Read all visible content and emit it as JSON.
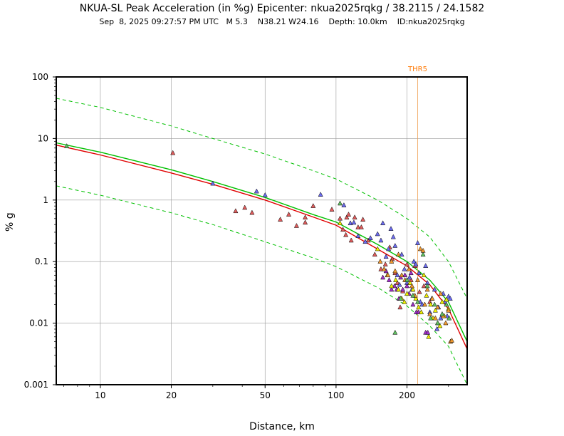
{
  "chart_data": {
    "type": "scatter",
    "title": "NKUA-SL Peak Acceleration (in %g) Epicenter: nkua2025rqkg / 38.2115 / 24.1582",
    "subtitle": "Sep  8, 2025 09:27:57 PM UTC   M 5.3    N38.21 W24.16    Depth: 10.0km    ID:nkua2025rqkg",
    "xlabel": "Distance, km",
    "ylabel": "% g",
    "x_scale": "log",
    "y_scale": "log",
    "xlim": [
      6.5,
      360
    ],
    "ylim": [
      0.001,
      100
    ],
    "x_ticks": [
      10,
      20,
      50,
      100,
      200
    ],
    "x_tick_labels": [
      "10",
      "20",
      "50",
      "100",
      "200"
    ],
    "y_ticks": [
      0.001,
      0.01,
      0.1,
      1,
      10,
      100
    ],
    "y_tick_labels": [
      "0.001",
      "0.01",
      "0.1",
      "1",
      "10",
      "100"
    ],
    "grid": true,
    "threshold": {
      "label": "THR5",
      "x": 222
    },
    "colors": {
      "red_curve": "#e00000",
      "green_curve": "#00c000",
      "threshold_line": "#f0a050",
      "threshold_label": "#ff7700",
      "grid": "#9a9a9a"
    },
    "curves": [
      {
        "name": "gmpe-median",
        "color": "green",
        "dash": false,
        "points": [
          [
            6.5,
            8.5
          ],
          [
            10,
            6.0
          ],
          [
            20,
            3.1
          ],
          [
            30,
            2.0
          ],
          [
            50,
            1.1
          ],
          [
            80,
            0.58
          ],
          [
            100,
            0.44
          ],
          [
            150,
            0.19
          ],
          [
            200,
            0.1
          ],
          [
            250,
            0.05
          ],
          [
            300,
            0.022
          ],
          [
            360,
            0.005
          ]
        ]
      },
      {
        "name": "gmpe-upper",
        "color": "green",
        "dash": true,
        "points": [
          [
            6.5,
            45
          ],
          [
            10,
            32
          ],
          [
            20,
            16
          ],
          [
            30,
            10
          ],
          [
            50,
            5.6
          ],
          [
            80,
            3.0
          ],
          [
            100,
            2.2
          ],
          [
            150,
            1.0
          ],
          [
            200,
            0.5
          ],
          [
            250,
            0.25
          ],
          [
            300,
            0.1
          ],
          [
            360,
            0.025
          ]
        ]
      },
      {
        "name": "gmpe-lower",
        "color": "green",
        "dash": true,
        "points": [
          [
            6.5,
            1.7
          ],
          [
            10,
            1.2
          ],
          [
            20,
            0.62
          ],
          [
            30,
            0.4
          ],
          [
            50,
            0.21
          ],
          [
            80,
            0.115
          ],
          [
            100,
            0.083
          ],
          [
            150,
            0.038
          ],
          [
            200,
            0.019
          ],
          [
            250,
            0.009
          ],
          [
            300,
            0.0042
          ],
          [
            360,
            0.001
          ]
        ]
      },
      {
        "name": "fitted",
        "color": "red",
        "dash": false,
        "points": [
          [
            6.5,
            7.8
          ],
          [
            10,
            5.4
          ],
          [
            20,
            2.75
          ],
          [
            30,
            1.8
          ],
          [
            50,
            1.0
          ],
          [
            80,
            0.53
          ],
          [
            100,
            0.39
          ],
          [
            150,
            0.16
          ],
          [
            200,
            0.085
          ],
          [
            250,
            0.042
          ],
          [
            300,
            0.017
          ],
          [
            360,
            0.0038
          ]
        ]
      }
    ],
    "series": [
      {
        "name": "red",
        "color": "#e05c5c",
        "points": [
          [
            20.3,
            5.8
          ],
          [
            37.5,
            0.66
          ],
          [
            41,
            0.75
          ],
          [
            44,
            0.62
          ],
          [
            58,
            0.48
          ],
          [
            63,
            0.58
          ],
          [
            68,
            0.38
          ],
          [
            74,
            0.43
          ],
          [
            74,
            0.52
          ],
          [
            80,
            0.8
          ],
          [
            96,
            0.7
          ],
          [
            104,
            0.5
          ],
          [
            107,
            0.33
          ],
          [
            110,
            0.27
          ],
          [
            111,
            0.52
          ],
          [
            113,
            0.58
          ],
          [
            116,
            0.22
          ],
          [
            120,
            0.52
          ],
          [
            124,
            0.36
          ],
          [
            128,
            0.36
          ],
          [
            130,
            0.48
          ],
          [
            137,
            0.22
          ],
          [
            146,
            0.13
          ],
          [
            155,
            0.075
          ],
          [
            162,
            0.09
          ],
          [
            169,
            0.17
          ],
          [
            173,
            0.11
          ],
          [
            178,
            0.065
          ],
          [
            182,
            0.045
          ],
          [
            187,
            0.018
          ],
          [
            192,
            0.033
          ],
          [
            200,
            0.09
          ],
          [
            208,
            0.05
          ],
          [
            216,
            0.085
          ],
          [
            226,
            0.032
          ],
          [
            236,
            0.04
          ],
          [
            250,
            0.022
          ]
        ]
      },
      {
        "name": "blue",
        "color": "#6c6cf0",
        "points": [
          [
            30,
            1.85
          ],
          [
            46,
            1.38
          ],
          [
            50,
            1.2
          ],
          [
            86,
            1.22
          ],
          [
            108,
            0.82
          ],
          [
            115,
            0.42
          ],
          [
            119,
            0.43
          ],
          [
            124,
            0.26
          ],
          [
            133,
            0.21
          ],
          [
            140,
            0.24
          ],
          [
            150,
            0.28
          ],
          [
            155,
            0.22
          ],
          [
            158,
            0.42
          ],
          [
            163,
            0.12
          ],
          [
            167,
            0.16
          ],
          [
            171,
            0.34
          ],
          [
            175,
            0.25
          ],
          [
            178,
            0.18
          ],
          [
            182,
            0.06
          ],
          [
            186,
            0.042
          ],
          [
            190,
            0.13
          ],
          [
            195,
            0.075
          ],
          [
            200,
            0.045
          ],
          [
            205,
            0.055
          ],
          [
            210,
            0.035
          ],
          [
            214,
            0.1
          ],
          [
            218,
            0.09
          ],
          [
            222,
            0.2
          ],
          [
            225,
            0.065
          ],
          [
            228,
            0.022
          ],
          [
            232,
            0.02
          ],
          [
            240,
            0.085
          ],
          [
            244,
            0.045
          ],
          [
            250,
            0.015
          ],
          [
            255,
            0.025
          ],
          [
            262,
            0.035
          ],
          [
            268,
            0.008
          ],
          [
            272,
            0.018
          ],
          [
            278,
            0.012
          ],
          [
            285,
            0.03
          ],
          [
            290,
            0.022
          ],
          [
            296,
            0.013
          ],
          [
            300,
            0.027
          ],
          [
            305,
            0.025
          ]
        ]
      },
      {
        "name": "purple",
        "color": "#a030c8",
        "points": [
          [
            158,
            0.055
          ],
          [
            163,
            0.07
          ],
          [
            168,
            0.05
          ],
          [
            172,
            0.035
          ],
          [
            177,
            0.04
          ],
          [
            181,
            0.035
          ],
          [
            185,
            0.025
          ],
          [
            188,
            0.055
          ],
          [
            192,
            0.035
          ],
          [
            196,
            0.06
          ],
          [
            200,
            0.04
          ],
          [
            204,
            0.03
          ],
          [
            208,
            0.065
          ],
          [
            212,
            0.02
          ],
          [
            219,
            0.015
          ],
          [
            224,
            0.015
          ],
          [
            240,
            0.007
          ],
          [
            245,
            0.007
          ]
        ]
      },
      {
        "name": "yellow",
        "color": "#f0f000",
        "points": [
          [
            104,
            0.42
          ],
          [
            150,
            0.16
          ],
          [
            165,
            0.06
          ],
          [
            172,
            0.04
          ],
          [
            179,
            0.05
          ],
          [
            184,
            0.035
          ],
          [
            190,
            0.025
          ],
          [
            195,
            0.022
          ],
          [
            200,
            0.03
          ],
          [
            206,
            0.045
          ],
          [
            212,
            0.035
          ],
          [
            218,
            0.025
          ],
          [
            224,
            0.018
          ],
          [
            230,
            0.015
          ],
          [
            236,
            0.06
          ],
          [
            242,
            0.028
          ],
          [
            247,
            0.006
          ],
          [
            252,
            0.02
          ],
          [
            258,
            0.012
          ],
          [
            264,
            0.016
          ],
          [
            270,
            0.01
          ],
          [
            276,
            0.009
          ],
          [
            282,
            0.022
          ],
          [
            288,
            0.013
          ],
          [
            294,
            0.024
          ],
          [
            300,
            0.017
          ]
        ]
      },
      {
        "name": "orange",
        "color": "#f09830",
        "points": [
          [
            154,
            0.1
          ],
          [
            160,
            0.075
          ],
          [
            166,
            0.06
          ],
          [
            172,
            0.1
          ],
          [
            178,
            0.07
          ],
          [
            184,
            0.13
          ],
          [
            190,
            0.06
          ],
          [
            196,
            0.05
          ],
          [
            204,
            0.075
          ],
          [
            210,
            0.04
          ],
          [
            216,
            0.028
          ],
          [
            222,
            0.05
          ],
          [
            228,
            0.16
          ],
          [
            234,
            0.15
          ],
          [
            238,
            0.02
          ],
          [
            244,
            0.035
          ],
          [
            250,
            0.014
          ],
          [
            256,
            0.025
          ],
          [
            264,
            0.012
          ],
          [
            270,
            0.018
          ],
          [
            278,
            0.03
          ],
          [
            285,
            0.013
          ],
          [
            292,
            0.01
          ],
          [
            300,
            0.016
          ],
          [
            306,
            0.005
          ],
          [
            310,
            0.0052
          ]
        ]
      },
      {
        "name": "green",
        "color": "#60c060",
        "points": [
          [
            7.2,
            7.5
          ],
          [
            104,
            0.88
          ],
          [
            178,
            0.007
          ],
          [
            188,
            0.025
          ],
          [
            200,
            0.05
          ],
          [
            212,
            0.028
          ],
          [
            222,
            0.022
          ],
          [
            234,
            0.13
          ],
          [
            244,
            0.04
          ],
          [
            252,
            0.012
          ],
          [
            262,
            0.02
          ],
          [
            270,
            0.01
          ],
          [
            282,
            0.014
          ],
          [
            294,
            0.02
          ],
          [
            302,
            0.012
          ]
        ]
      }
    ]
  }
}
